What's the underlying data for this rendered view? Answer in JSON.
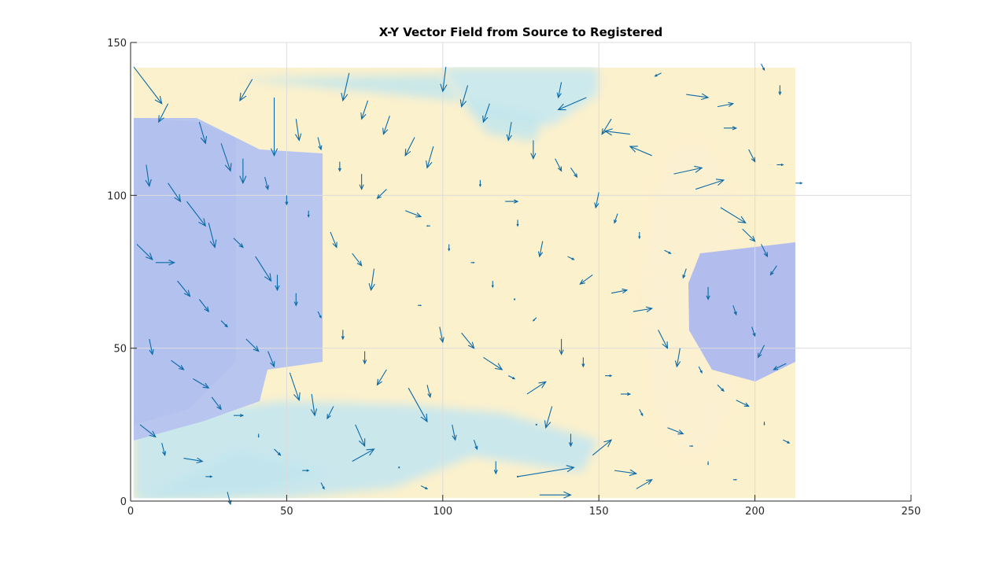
{
  "chart_data": {
    "type": "quiver",
    "title": "X-Y Vector Field from Source to Registered",
    "xlabel": "",
    "ylabel": "",
    "xlim": [
      0,
      250
    ],
    "ylim": [
      0,
      150
    ],
    "xticks": [
      0,
      50,
      100,
      150,
      200,
      250
    ],
    "yticks": [
      0,
      50,
      100,
      150
    ],
    "xtick_labels": [
      "0",
      "50",
      "100",
      "150",
      "200",
      "250"
    ],
    "ytick_labels": [
      "0",
      "50",
      "100",
      "150"
    ],
    "grid": true,
    "background_image": {
      "extent_x": [
        1,
        213
      ],
      "extent_y": [
        1,
        142
      ],
      "regions": [
        {
          "label": "left-blue-block",
          "color": "#b3c4ef"
        },
        {
          "label": "right-blue-block",
          "color": "#b1bdee"
        },
        {
          "label": "upper-cyan-band",
          "color": "#bfe6ee"
        },
        {
          "label": "lower-cyan-band",
          "color": "#c2e6ef"
        },
        {
          "label": "center-pale-yellow",
          "color": "#fcf1cd"
        }
      ]
    },
    "arrow_color": "#0b6aa6",
    "vectors": [
      {
        "x": 1,
        "y": 142,
        "u": 9,
        "v": -12
      },
      {
        "x": 12,
        "y": 130,
        "u": -3,
        "v": -6
      },
      {
        "x": 39,
        "y": 138,
        "u": -4,
        "v": -7
      },
      {
        "x": 70,
        "y": 140,
        "u": -2,
        "v": -9
      },
      {
        "x": 76,
        "y": 131,
        "u": -2,
        "v": -6
      },
      {
        "x": 101,
        "y": 142,
        "u": -1,
        "v": -8
      },
      {
        "x": 108,
        "y": 136,
        "u": -2,
        "v": -7
      },
      {
        "x": 115,
        "y": 130,
        "u": -2,
        "v": -6
      },
      {
        "x": 138,
        "y": 137,
        "u": -1,
        "v": -5
      },
      {
        "x": 146,
        "y": 132,
        "u": -9,
        "v": -4
      },
      {
        "x": 170,
        "y": 140,
        "u": -2,
        "v": -1
      },
      {
        "x": 178,
        "y": 133,
        "u": 7,
        "v": -1
      },
      {
        "x": 188,
        "y": 129,
        "u": 5,
        "v": 1
      },
      {
        "x": 202,
        "y": 143,
        "u": 1,
        "v": -2
      },
      {
        "x": 208,
        "y": 136,
        "u": 0,
        "v": -3
      },
      {
        "x": 22,
        "y": 124,
        "u": 2,
        "v": -7
      },
      {
        "x": 46,
        "y": 132,
        "u": 0,
        "v": -19
      },
      {
        "x": 53,
        "y": 125,
        "u": 1,
        "v": -7
      },
      {
        "x": 83,
        "y": 126,
        "u": -2,
        "v": -6
      },
      {
        "x": 91,
        "y": 119,
        "u": -3,
        "v": -6
      },
      {
        "x": 122,
        "y": 124,
        "u": -1,
        "v": -6
      },
      {
        "x": 154,
        "y": 125,
        "u": -3,
        "v": -5
      },
      {
        "x": 160,
        "y": 120,
        "u": -8,
        "v": 1
      },
      {
        "x": 167,
        "y": 113,
        "u": -7,
        "v": 3
      },
      {
        "x": 190,
        "y": 122,
        "u": 4,
        "v": 0
      },
      {
        "x": 198,
        "y": 115,
        "u": 2,
        "v": -4
      },
      {
        "x": 5,
        "y": 110,
        "u": 1,
        "v": -7
      },
      {
        "x": 29,
        "y": 117,
        "u": 3,
        "v": -9
      },
      {
        "x": 36,
        "y": 112,
        "u": 0,
        "v": -8
      },
      {
        "x": 60,
        "y": 119,
        "u": 1,
        "v": -4
      },
      {
        "x": 67,
        "y": 111,
        "u": 0,
        "v": -3
      },
      {
        "x": 97,
        "y": 116,
        "u": -2,
        "v": -7
      },
      {
        "x": 129,
        "y": 118,
        "u": 0,
        "v": -6
      },
      {
        "x": 136,
        "y": 112,
        "u": 2,
        "v": -4
      },
      {
        "x": 141,
        "y": 109,
        "u": 2,
        "v": -3
      },
      {
        "x": 174,
        "y": 107,
        "u": 9,
        "v": 2
      },
      {
        "x": 181,
        "y": 102,
        "u": 9,
        "v": 3
      },
      {
        "x": 207,
        "y": 110,
        "u": 2,
        "v": 0
      },
      {
        "x": 213,
        "y": 104,
        "u": 2,
        "v": 0
      },
      {
        "x": 12,
        "y": 104,
        "u": 4,
        "v": -6
      },
      {
        "x": 18,
        "y": 98,
        "u": 6,
        "v": -8
      },
      {
        "x": 25,
        "y": 91,
        "u": 2,
        "v": -8
      },
      {
        "x": 43,
        "y": 106,
        "u": 1,
        "v": -4
      },
      {
        "x": 50,
        "y": 100,
        "u": 0,
        "v": -3
      },
      {
        "x": 74,
        "y": 107,
        "u": 0,
        "v": -5
      },
      {
        "x": 82,
        "y": 102,
        "u": -3,
        "v": -3
      },
      {
        "x": 112,
        "y": 105,
        "u": 0,
        "v": -2
      },
      {
        "x": 120,
        "y": 98,
        "u": 4,
        "v": 0
      },
      {
        "x": 88,
        "y": 95,
        "u": 5,
        "v": -2
      },
      {
        "x": 96,
        "y": 90,
        "u": -1,
        "v": 0
      },
      {
        "x": 150,
        "y": 101,
        "u": -1,
        "v": -5
      },
      {
        "x": 156,
        "y": 94,
        "u": -1,
        "v": -3
      },
      {
        "x": 189,
        "y": 96,
        "u": 8,
        "v": -5
      },
      {
        "x": 196,
        "y": 89,
        "u": 4,
        "v": -4
      },
      {
        "x": 2,
        "y": 84,
        "u": 5,
        "v": -5
      },
      {
        "x": 8,
        "y": 78,
        "u": 6,
        "v": 0
      },
      {
        "x": 33,
        "y": 86,
        "u": 3,
        "v": -3
      },
      {
        "x": 40,
        "y": 80,
        "u": 5,
        "v": -8
      },
      {
        "x": 57,
        "y": 95,
        "u": 0,
        "v": -2
      },
      {
        "x": 64,
        "y": 88,
        "u": 2,
        "v": -5
      },
      {
        "x": 71,
        "y": 81,
        "u": 3,
        "v": -4
      },
      {
        "x": 102,
        "y": 84,
        "u": 0,
        "v": -2
      },
      {
        "x": 124,
        "y": 92,
        "u": 0,
        "v": -2
      },
      {
        "x": 132,
        "y": 85,
        "u": -1,
        "v": -5
      },
      {
        "x": 163,
        "y": 88,
        "u": 0,
        "v": -2
      },
      {
        "x": 171,
        "y": 82,
        "u": 2,
        "v": -1
      },
      {
        "x": 202,
        "y": 84,
        "u": 2,
        "v": -4
      },
      {
        "x": 207,
        "y": 77,
        "u": -2,
        "v": -3
      },
      {
        "x": 15,
        "y": 72,
        "u": 4,
        "v": -5
      },
      {
        "x": 22,
        "y": 66,
        "u": 3,
        "v": -4
      },
      {
        "x": 47,
        "y": 74,
        "u": 0,
        "v": -5
      },
      {
        "x": 53,
        "y": 68,
        "u": 0,
        "v": -4
      },
      {
        "x": 78,
        "y": 76,
        "u": -1,
        "v": -7
      },
      {
        "x": 109,
        "y": 78,
        "u": 1,
        "v": 0
      },
      {
        "x": 116,
        "y": 72,
        "u": 0,
        "v": -2
      },
      {
        "x": 140,
        "y": 80,
        "u": 2,
        "v": -1
      },
      {
        "x": 148,
        "y": 74,
        "u": -4,
        "v": -3
      },
      {
        "x": 154,
        "y": 68,
        "u": 5,
        "v": 1
      },
      {
        "x": 178,
        "y": 76,
        "u": -1,
        "v": -3
      },
      {
        "x": 185,
        "y": 70,
        "u": 0,
        "v": -4
      },
      {
        "x": 29,
        "y": 59,
        "u": 2,
        "v": -2
      },
      {
        "x": 37,
        "y": 53,
        "u": 4,
        "v": -4
      },
      {
        "x": 60,
        "y": 62,
        "u": 1,
        "v": -2
      },
      {
        "x": 68,
        "y": 56,
        "u": 0,
        "v": -3
      },
      {
        "x": 92,
        "y": 64,
        "u": 1,
        "v": 0
      },
      {
        "x": 99,
        "y": 57,
        "u": 1,
        "v": -5
      },
      {
        "x": 123,
        "y": 66,
        "u": 0,
        "v": 0
      },
      {
        "x": 130,
        "y": 60,
        "u": -1,
        "v": -1
      },
      {
        "x": 161,
        "y": 62,
        "u": 6,
        "v": 1
      },
      {
        "x": 193,
        "y": 64,
        "u": 1,
        "v": -3
      },
      {
        "x": 199,
        "y": 57,
        "u": 1,
        "v": -3
      },
      {
        "x": 6,
        "y": 53,
        "u": 1,
        "v": -5
      },
      {
        "x": 13,
        "y": 46,
        "u": 4,
        "v": -3
      },
      {
        "x": 44,
        "y": 49,
        "u": 2,
        "v": -5
      },
      {
        "x": 75,
        "y": 49,
        "u": 0,
        "v": -4
      },
      {
        "x": 106,
        "y": 55,
        "u": 4,
        "v": -5
      },
      {
        "x": 113,
        "y": 47,
        "u": 6,
        "v": -4
      },
      {
        "x": 138,
        "y": 53,
        "u": 0,
        "v": -5
      },
      {
        "x": 145,
        "y": 47,
        "u": 0,
        "v": -3
      },
      {
        "x": 169,
        "y": 56,
        "u": 3,
        "v": -6
      },
      {
        "x": 176,
        "y": 50,
        "u": -1,
        "v": -6
      },
      {
        "x": 203,
        "y": 51,
        "u": -2,
        "v": -4
      },
      {
        "x": 210,
        "y": 45,
        "u": -4,
        "v": -2
      },
      {
        "x": 20,
        "y": 40,
        "u": 5,
        "v": -3
      },
      {
        "x": 26,
        "y": 34,
        "u": 3,
        "v": -4
      },
      {
        "x": 51,
        "y": 42,
        "u": 3,
        "v": -9
      },
      {
        "x": 58,
        "y": 35,
        "u": 1,
        "v": -7
      },
      {
        "x": 82,
        "y": 43,
        "u": -3,
        "v": -5
      },
      {
        "x": 89,
        "y": 37,
        "u": 6,
        "v": -11
      },
      {
        "x": 95,
        "y": 38,
        "u": 1,
        "v": -4
      },
      {
        "x": 121,
        "y": 41,
        "u": 2,
        "v": -1
      },
      {
        "x": 127,
        "y": 35,
        "u": 6,
        "v": 4
      },
      {
        "x": 135,
        "y": 31,
        "u": -2,
        "v": -7
      },
      {
        "x": 152,
        "y": 41,
        "u": 2,
        "v": 0
      },
      {
        "x": 157,
        "y": 35,
        "u": 3,
        "v": 0
      },
      {
        "x": 182,
        "y": 44,
        "u": 1,
        "v": -2
      },
      {
        "x": 188,
        "y": 38,
        "u": 2,
        "v": -2
      },
      {
        "x": 194,
        "y": 33,
        "u": 4,
        "v": -2
      },
      {
        "x": 3,
        "y": 25,
        "u": 5,
        "v": -4
      },
      {
        "x": 10,
        "y": 19,
        "u": 1,
        "v": -4
      },
      {
        "x": 33,
        "y": 28,
        "u": 3,
        "v": 0
      },
      {
        "x": 41,
        "y": 22,
        "u": 0,
        "v": -1
      },
      {
        "x": 65,
        "y": 31,
        "u": -2,
        "v": -4
      },
      {
        "x": 72,
        "y": 25,
        "u": 3,
        "v": -7
      },
      {
        "x": 103,
        "y": 25,
        "u": 1,
        "v": -5
      },
      {
        "x": 110,
        "y": 20,
        "u": 1,
        "v": -3
      },
      {
        "x": 130,
        "y": 25,
        "u": 0,
        "v": 0
      },
      {
        "x": 141,
        "y": 22,
        "u": 0,
        "v": -4
      },
      {
        "x": 148,
        "y": 15,
        "u": 6,
        "v": 5
      },
      {
        "x": 163,
        "y": 30,
        "u": 1,
        "v": -2
      },
      {
        "x": 172,
        "y": 24,
        "u": 5,
        "v": -2
      },
      {
        "x": 179,
        "y": 18,
        "u": 1,
        "v": 0
      },
      {
        "x": 203,
        "y": 26,
        "u": 0,
        "v": -1
      },
      {
        "x": 209,
        "y": 20,
        "u": 2,
        "v": -1
      },
      {
        "x": 17,
        "y": 14,
        "u": 6,
        "v": -1
      },
      {
        "x": 24,
        "y": 8,
        "u": 2,
        "v": 0
      },
      {
        "x": 31,
        "y": 3,
        "u": 1,
        "v": -4
      },
      {
        "x": 46,
        "y": 17,
        "u": 2,
        "v": -2
      },
      {
        "x": 55,
        "y": 10,
        "u": 2,
        "v": 0
      },
      {
        "x": 61,
        "y": 6,
        "u": 1,
        "v": -2
      },
      {
        "x": 71,
        "y": 13,
        "u": 7,
        "v": 4
      },
      {
        "x": 86,
        "y": 11,
        "u": 0,
        "v": 0
      },
      {
        "x": 93,
        "y": 5,
        "u": 2,
        "v": -1
      },
      {
        "x": 117,
        "y": 13,
        "u": 0,
        "v": -4
      },
      {
        "x": 124,
        "y": 8,
        "u": 0,
        "v": 0
      },
      {
        "x": 124,
        "y": 8,
        "u": 18,
        "v": 3
      },
      {
        "x": 131,
        "y": 2,
        "u": 10,
        "v": 0
      },
      {
        "x": 155,
        "y": 10,
        "u": 7,
        "v": -1
      },
      {
        "x": 162,
        "y": 4,
        "u": 5,
        "v": 3
      },
      {
        "x": 185,
        "y": 13,
        "u": 0,
        "v": -1
      },
      {
        "x": 193,
        "y": 7,
        "u": 1,
        "v": 0
      }
    ]
  }
}
